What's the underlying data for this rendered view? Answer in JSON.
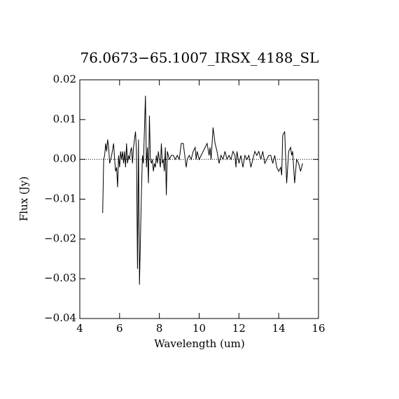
{
  "chart_data": {
    "type": "line",
    "title": "76.0673−65.1007_IRSX_4188_SL",
    "x_label": "Wavelength (um)",
    "y_label": "Flux (Jy)",
    "xlim": [
      4,
      16
    ],
    "xticks": [
      4,
      6,
      8,
      10,
      12,
      14,
      16
    ],
    "ylim": [
      -0.04,
      0.02
    ],
    "yticks": [
      {
        "value": -0.04,
        "label": "−0.04"
      },
      {
        "value": -0.03,
        "label": "−0.03"
      },
      {
        "value": -0.02,
        "label": "−0.02"
      },
      {
        "value": -0.01,
        "label": "−0.01"
      },
      {
        "value": 0,
        "label": "0.00"
      },
      {
        "value": 0.01,
        "label": "0.01"
      },
      {
        "value": 0.02,
        "label": "0.02"
      }
    ],
    "zero_line": true,
    "series": [
      {
        "color": "#000000",
        "x": [
          5.15,
          5.2,
          5.25,
          5.3,
          5.35,
          5.4,
          5.45,
          5.5,
          5.6,
          5.7,
          5.75,
          5.8,
          5.85,
          5.9,
          5.95,
          6.0,
          6.05,
          6.1,
          6.15,
          6.2,
          6.25,
          6.3,
          6.35,
          6.4,
          6.45,
          6.5,
          6.55,
          6.6,
          6.65,
          6.7,
          6.75,
          6.8,
          6.85,
          6.9,
          6.95,
          7.0,
          7.1,
          7.15,
          7.2,
          7.3,
          7.35,
          7.4,
          7.45,
          7.5,
          7.55,
          7.6,
          7.65,
          7.7,
          7.75,
          7.8,
          7.85,
          7.9,
          7.95,
          8.0,
          8.05,
          8.1,
          8.15,
          8.2,
          8.25,
          8.3,
          8.35,
          8.4,
          8.5,
          8.6,
          8.7,
          8.8,
          8.9,
          9.0,
          9.1,
          9.2,
          9.3,
          9.35,
          9.4,
          9.5,
          9.6,
          9.7,
          9.8,
          9.85,
          9.9,
          10.0,
          10.1,
          10.2,
          10.3,
          10.4,
          10.5,
          10.55,
          10.6,
          10.7,
          10.8,
          10.9,
          11.0,
          11.1,
          11.2,
          11.3,
          11.4,
          11.5,
          11.6,
          11.7,
          11.8,
          11.85,
          11.9,
          12.0,
          12.1,
          12.2,
          12.3,
          12.4,
          12.5,
          12.6,
          12.7,
          12.8,
          12.9,
          13.0,
          13.1,
          13.2,
          13.3,
          13.4,
          13.5,
          13.6,
          13.7,
          13.8,
          13.9,
          14.0,
          14.1,
          14.15,
          14.2,
          14.3,
          14.4,
          14.5,
          14.6,
          14.65,
          14.7,
          14.8,
          14.9,
          15.0,
          15.1,
          15.2
        ],
        "values": [
          -0.0135,
          0.0,
          0.001,
          0.004,
          0.002,
          0.005,
          0.003,
          -0.001,
          0.001,
          0.004,
          0.0,
          -0.003,
          -0.002,
          -0.007,
          0.001,
          -0.002,
          0.002,
          0.0,
          0.002,
          -0.001,
          0.002,
          -0.002,
          0.004,
          -0.001,
          0.001,
          0.0,
          0.002,
          0.003,
          -0.001,
          0.003,
          0.005,
          0.007,
          0.002,
          -0.0275,
          0.005,
          -0.0315,
          -0.008,
          0.001,
          -0.001,
          0.016,
          -0.002,
          0.003,
          -0.006,
          0.011,
          0.0,
          -0.001,
          0.0,
          -0.003,
          -0.001,
          -0.002,
          0.001,
          -0.001,
          0.002,
          0.0,
          -0.002,
          0.004,
          -0.001,
          0.0,
          -0.003,
          0.003,
          -0.009,
          0.002,
          0.0,
          0.001,
          0.001,
          0.0,
          0.001,
          0.0,
          0.004,
          0.004,
          0.0,
          -0.002,
          0.0,
          0.001,
          0.0,
          0.002,
          0.003,
          0.0,
          0.002,
          0.0,
          0.001,
          0.002,
          0.003,
          0.004,
          0.001,
          0.003,
          0.0,
          0.008,
          0.004,
          0.002,
          -0.001,
          0.001,
          0.0,
          0.002,
          0.0,
          0.001,
          0.0,
          0.002,
          0.001,
          -0.002,
          0.002,
          -0.001,
          0.001,
          -0.002,
          0.001,
          0.0,
          0.001,
          -0.002,
          0.0,
          0.002,
          0.001,
          0.002,
          0.0,
          0.002,
          -0.001,
          0.0,
          0.001,
          0.001,
          -0.001,
          0.001,
          -0.002,
          -0.003,
          -0.002,
          -0.004,
          0.006,
          0.007,
          -0.006,
          0.002,
          0.003,
          0.001,
          0.002,
          -0.006,
          0.0,
          -0.001,
          -0.003,
          -0.001
        ]
      }
    ]
  }
}
